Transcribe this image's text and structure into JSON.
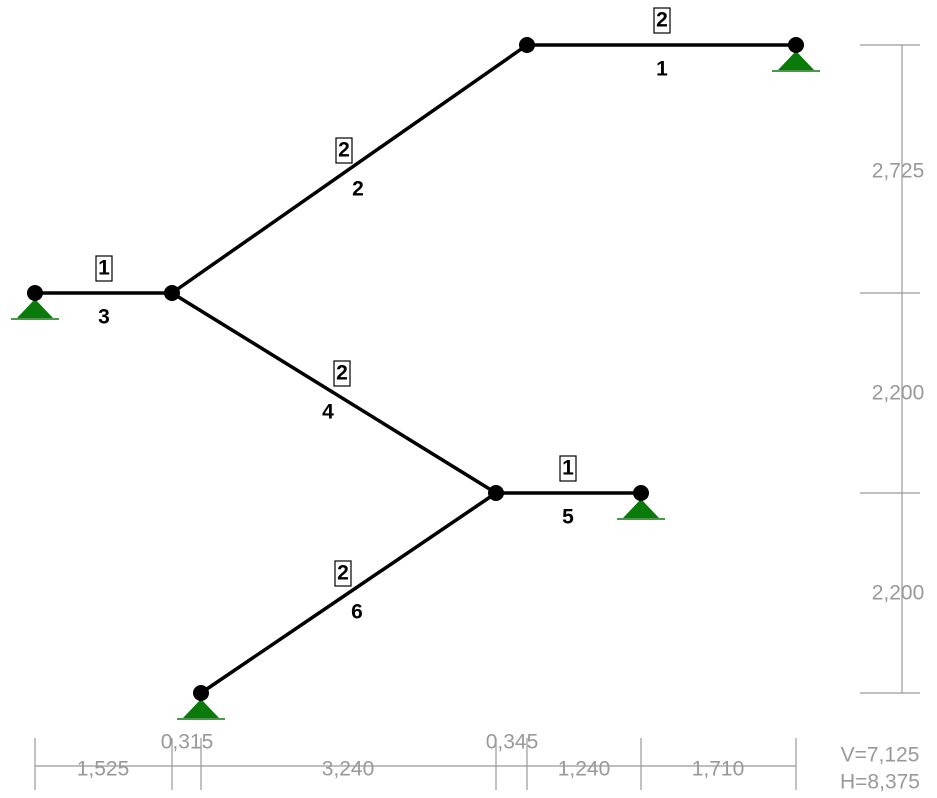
{
  "members": [
    {
      "number": "1",
      "section": "2"
    },
    {
      "number": "2",
      "section": "2"
    },
    {
      "number": "3",
      "section": "1"
    },
    {
      "number": "4",
      "section": "2"
    },
    {
      "number": "5",
      "section": "1"
    },
    {
      "number": "6",
      "section": "2"
    }
  ],
  "dimensions": {
    "horizontal": [
      "1,525",
      "0,315",
      "3,240",
      "0,345",
      "1,240",
      "1,710"
    ],
    "vertical": [
      "2,725",
      "2,200",
      "2,200"
    ]
  },
  "totals": {
    "vertical": "V=7,125",
    "horizontal": "H=8,375"
  }
}
